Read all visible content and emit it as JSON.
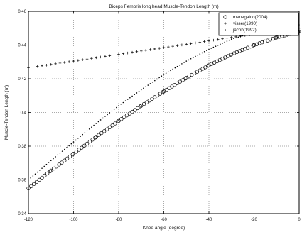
{
  "chart_data": {
    "type": "scatter",
    "title": "Biceps Femoris long head Muscle-Tendon Length (m)",
    "xlabel": "Knee angle (degree)",
    "ylabel": "Muscle-Tendon Length (m)",
    "xlim": [
      -120,
      0
    ],
    "ylim": [
      0.34,
      0.46
    ],
    "x_ticks": [
      -120,
      -100,
      -80,
      -60,
      -40,
      -20,
      0
    ],
    "y_ticks": [
      0.34,
      0.36,
      0.38,
      0.4,
      0.42,
      0.44,
      0.46
    ],
    "x_tick_labels": [
      "-120",
      "-100",
      "-80",
      "-60",
      "-40",
      "-20",
      "0"
    ],
    "y_tick_labels": [
      "0.34",
      "0.36",
      "0.38",
      "0.4",
      "0.42",
      "0.44",
      "0.46"
    ],
    "grid": true,
    "legend_position": "top-right",
    "series": [
      {
        "name": "menegaldo(2004)",
        "marker": "circle",
        "x": [
          -120,
          -110,
          -100,
          -90,
          -80,
          -70,
          -60,
          -50,
          -40,
          -30,
          -20,
          -10,
          0
        ],
        "y": [
          0.355,
          0.3655,
          0.3755,
          0.3855,
          0.395,
          0.404,
          0.4125,
          0.4205,
          0.428,
          0.4345,
          0.44,
          0.4445,
          0.448
        ]
      },
      {
        "name": "visser(1990)",
        "marker": "plus",
        "x": [
          -120,
          -110,
          -100,
          -90,
          -80,
          -70,
          -60,
          -50,
          -40,
          -30,
          -20,
          -10,
          0
        ],
        "y": [
          0.4265,
          0.4285,
          0.4305,
          0.4325,
          0.4345,
          0.4365,
          0.4385,
          0.4405,
          0.4425,
          0.4445,
          0.4465,
          0.4485,
          0.45
        ]
      },
      {
        "name": "jacob(1992)",
        "marker": "dot",
        "x": [
          -120,
          -110,
          -100,
          -90,
          -80,
          -70,
          -60,
          -50,
          -40,
          -30,
          -20,
          -10,
          0
        ],
        "y": [
          0.36,
          0.3715,
          0.3825,
          0.3935,
          0.404,
          0.4135,
          0.4225,
          0.4305,
          0.4375,
          0.4435,
          0.4475,
          0.4505,
          0.452
        ]
      }
    ]
  }
}
